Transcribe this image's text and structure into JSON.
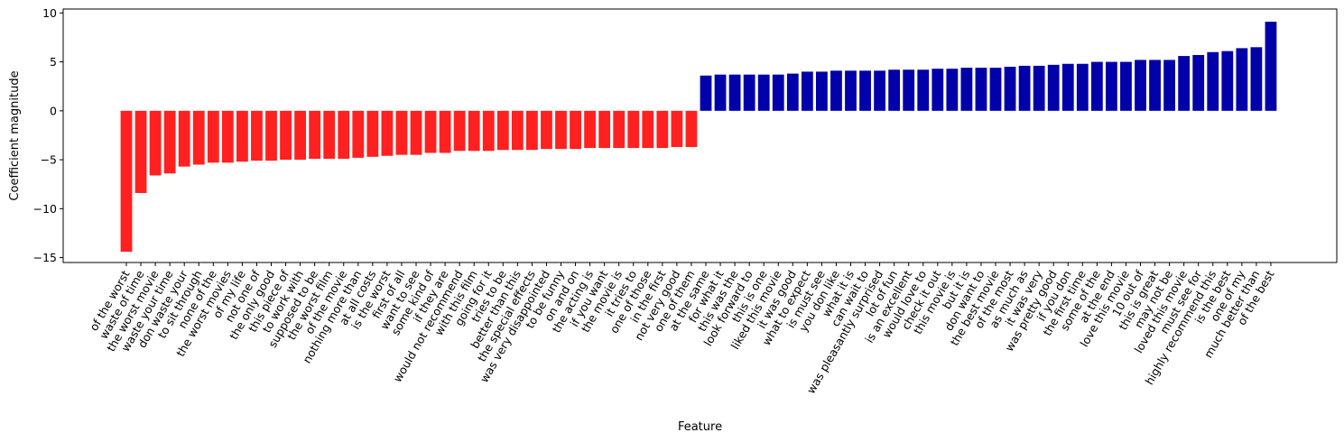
{
  "chart_data": {
    "type": "bar",
    "title": "",
    "xlabel": "Feature",
    "ylabel": "Coefficient magnitude",
    "ylim": [
      -15.5,
      10.4
    ],
    "yticks": [
      -15,
      -10,
      -5,
      0,
      5,
      10
    ],
    "grid": false,
    "colors": {
      "negative": "#ff2020",
      "positive": "#0000aa"
    },
    "categories": [
      "of the worst",
      "waste of time",
      "the worst movie",
      "waste your time",
      "don waste your",
      "to sit through",
      "none of the",
      "the worst movies",
      "of my life",
      "not one of",
      "the only good",
      "this piece of",
      "to work with",
      "supposed to be",
      "the worst film",
      "of the movie",
      "nothing more than",
      "at all costs",
      "is the worst",
      "first of all",
      "want to see",
      "some kind of",
      "if they are",
      "would not recommend",
      "with this film",
      "going for it",
      "tries to be",
      "better than this",
      "the special effects",
      "was very disappointed",
      "to be funny",
      "on and on",
      "the acting is",
      "if you want",
      "the movie is",
      "it tries to",
      "one of those",
      "in the first",
      "not very good",
      "one of them",
      "at the same",
      "for what it",
      "this was the",
      "look forward to",
      "this is one",
      "liked this movie",
      "it was good",
      "what to expect",
      "is must see",
      "you don like",
      "what it is",
      "can wait to",
      "was pleasantly surprised",
      "lot of fun",
      "is an excellent",
      "would love to",
      "check it out",
      "this movie is",
      "but it is",
      "don want to",
      "the best movie",
      "of the most",
      "as much as",
      "it was very",
      "was pretty good",
      "if you don",
      "the first time",
      "some of the",
      "at the end",
      "love this movie",
      "10 out of",
      "this is great",
      "may not be",
      "loved this movie",
      "must see for",
      "highly recommend this",
      "is the best",
      "one of my",
      "much better than",
      "of the best"
    ],
    "values": [
      -14.4,
      -8.4,
      -6.6,
      -6.4,
      -5.7,
      -5.5,
      -5.3,
      -5.3,
      -5.2,
      -5.1,
      -5.1,
      -5.0,
      -5.0,
      -4.9,
      -4.9,
      -4.9,
      -4.8,
      -4.7,
      -4.6,
      -4.5,
      -4.5,
      -4.3,
      -4.3,
      -4.1,
      -4.1,
      -4.1,
      -4.0,
      -4.0,
      -4.0,
      -3.9,
      -3.9,
      -3.9,
      -3.8,
      -3.8,
      -3.8,
      -3.8,
      -3.8,
      -3.8,
      -3.7,
      -3.7,
      3.6,
      3.7,
      3.7,
      3.7,
      3.7,
      3.7,
      3.8,
      4.0,
      4.0,
      4.1,
      4.1,
      4.1,
      4.1,
      4.2,
      4.2,
      4.2,
      4.3,
      4.3,
      4.4,
      4.4,
      4.4,
      4.5,
      4.6,
      4.6,
      4.7,
      4.8,
      4.8,
      5.0,
      5.0,
      5.0,
      5.2,
      5.2,
      5.2,
      5.6,
      5.7,
      6.0,
      6.1,
      6.4,
      6.5,
      9.1
    ]
  }
}
